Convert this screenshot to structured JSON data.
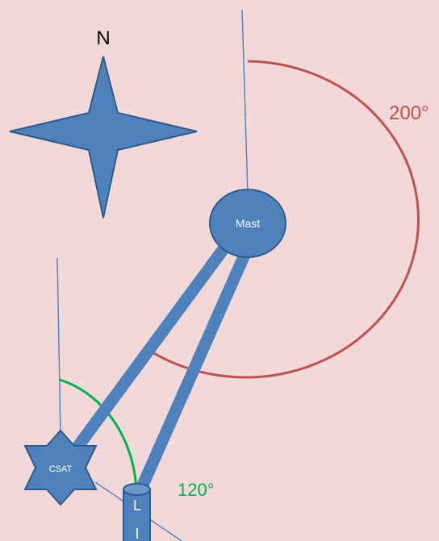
{
  "compass": {
    "north_label": "N"
  },
  "nodes": {
    "mast_label": "Mast",
    "csat_label": "CSAT",
    "l_label": "L",
    "l_lower_label": "I"
  },
  "angles": {
    "mast_angle": "200°",
    "csat_angle": "120°"
  },
  "colors": {
    "background": "#f2d8d8",
    "shape_fill": "#4f81bd",
    "shape_stroke": "#2e5c8a",
    "line_thin": "#4f81bd",
    "arc_red": "#c0504d",
    "arc_green": "#00b050"
  }
}
